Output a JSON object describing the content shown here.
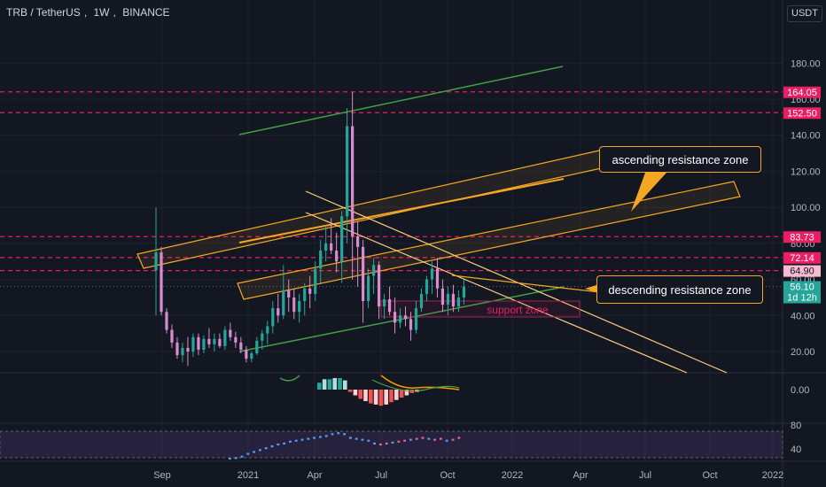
{
  "header": {
    "symbol": "TRB / TetherUS",
    "interval": "1W",
    "exchange": "BINANCE",
    "currency_button": "USDT"
  },
  "colors": {
    "background": "#131722",
    "up_candle": "#26a69a",
    "down_candle": "#d98ccd",
    "green_line": "#43a047",
    "orange": "#f5a623",
    "pink_level": "#e91e63",
    "current_price_bg": "#26a69a"
  },
  "chart_data": {
    "type": "candlestick",
    "timeframe": "1W",
    "x_ticks": [
      "Sep",
      "2021",
      "Apr",
      "Jul",
      "Oct",
      "2022",
      "Apr",
      "Jul",
      "Oct",
      "2022"
    ],
    "y_ticks": [
      "20.00",
      "40.00",
      "60.00",
      "80.00",
      "100.00",
      "120.00",
      "140.00",
      "160.00",
      "180.00"
    ],
    "ylim": [
      4,
      190
    ],
    "price_labels": [
      {
        "label": "164.05",
        "value": 164.05,
        "style": "pink"
      },
      {
        "label": "152.50",
        "value": 152.5,
        "style": "pink"
      },
      {
        "label": "83.73",
        "value": 83.73,
        "style": "pink"
      },
      {
        "label": "72.14",
        "value": 72.14,
        "style": "pink"
      },
      {
        "label": "64.90",
        "value": 64.9,
        "style": "pink-light"
      },
      {
        "label": "56.10",
        "value": 56.1,
        "style": "current"
      },
      {
        "label": "1d 12h",
        "value": null,
        "style": "countdown"
      }
    ],
    "candles": [
      {
        "o": 65,
        "h": 100,
        "l": 40,
        "c": 75
      },
      {
        "o": 75,
        "h": 78,
        "l": 40,
        "c": 42
      },
      {
        "o": 42,
        "h": 44,
        "l": 30,
        "c": 32
      },
      {
        "o": 32,
        "h": 35,
        "l": 22,
        "c": 25
      },
      {
        "o": 25,
        "h": 28,
        "l": 16,
        "c": 18
      },
      {
        "o": 18,
        "h": 25,
        "l": 14,
        "c": 22
      },
      {
        "o": 22,
        "h": 28,
        "l": 12,
        "c": 20
      },
      {
        "o": 20,
        "h": 30,
        "l": 17,
        "c": 28
      },
      {
        "o": 28,
        "h": 30,
        "l": 18,
        "c": 21
      },
      {
        "o": 21,
        "h": 29,
        "l": 19,
        "c": 27
      },
      {
        "o": 27,
        "h": 33,
        "l": 22,
        "c": 24
      },
      {
        "o": 24,
        "h": 30,
        "l": 20,
        "c": 27
      },
      {
        "o": 27,
        "h": 30,
        "l": 22,
        "c": 23
      },
      {
        "o": 23,
        "h": 34,
        "l": 21,
        "c": 32
      },
      {
        "o": 32,
        "h": 36,
        "l": 26,
        "c": 28
      },
      {
        "o": 28,
        "h": 31,
        "l": 22,
        "c": 25
      },
      {
        "o": 25,
        "h": 28,
        "l": 19,
        "c": 21
      },
      {
        "o": 21,
        "h": 23,
        "l": 14,
        "c": 16
      },
      {
        "o": 16,
        "h": 20,
        "l": 14,
        "c": 19
      },
      {
        "o": 19,
        "h": 28,
        "l": 18,
        "c": 26
      },
      {
        "o": 26,
        "h": 32,
        "l": 21,
        "c": 30
      },
      {
        "o": 30,
        "h": 37,
        "l": 24,
        "c": 34
      },
      {
        "o": 34,
        "h": 48,
        "l": 30,
        "c": 44
      },
      {
        "o": 44,
        "h": 52,
        "l": 36,
        "c": 40
      },
      {
        "o": 40,
        "h": 68,
        "l": 38,
        "c": 54
      },
      {
        "o": 54,
        "h": 60,
        "l": 42,
        "c": 50
      },
      {
        "o": 50,
        "h": 55,
        "l": 38,
        "c": 42
      },
      {
        "o": 42,
        "h": 52,
        "l": 36,
        "c": 48
      },
      {
        "o": 48,
        "h": 58,
        "l": 40,
        "c": 55
      },
      {
        "o": 55,
        "h": 62,
        "l": 44,
        "c": 52
      },
      {
        "o": 52,
        "h": 70,
        "l": 48,
        "c": 66
      },
      {
        "o": 66,
        "h": 82,
        "l": 58,
        "c": 76
      },
      {
        "o": 76,
        "h": 90,
        "l": 70,
        "c": 80
      },
      {
        "o": 80,
        "h": 94,
        "l": 74,
        "c": 76
      },
      {
        "o": 76,
        "h": 86,
        "l": 64,
        "c": 70
      },
      {
        "o": 70,
        "h": 98,
        "l": 58,
        "c": 95
      },
      {
        "o": 95,
        "h": 155,
        "l": 80,
        "c": 145
      },
      {
        "o": 145,
        "h": 164,
        "l": 60,
        "c": 84
      },
      {
        "o": 84,
        "h": 92,
        "l": 56,
        "c": 78
      },
      {
        "o": 78,
        "h": 82,
        "l": 36,
        "c": 48
      },
      {
        "o": 48,
        "h": 66,
        "l": 44,
        "c": 62
      },
      {
        "o": 62,
        "h": 72,
        "l": 52,
        "c": 68
      },
      {
        "o": 68,
        "h": 70,
        "l": 38,
        "c": 45
      },
      {
        "o": 45,
        "h": 52,
        "l": 38,
        "c": 49
      },
      {
        "o": 49,
        "h": 56,
        "l": 40,
        "c": 42
      },
      {
        "o": 42,
        "h": 50,
        "l": 30,
        "c": 36
      },
      {
        "o": 36,
        "h": 44,
        "l": 33,
        "c": 40
      },
      {
        "o": 40,
        "h": 45,
        "l": 34,
        "c": 38
      },
      {
        "o": 38,
        "h": 42,
        "l": 26,
        "c": 32
      },
      {
        "o": 32,
        "h": 48,
        "l": 30,
        "c": 44
      },
      {
        "o": 44,
        "h": 55,
        "l": 42,
        "c": 52
      },
      {
        "o": 52,
        "h": 62,
        "l": 48,
        "c": 60
      },
      {
        "o": 60,
        "h": 70,
        "l": 52,
        "c": 66
      },
      {
        "o": 66,
        "h": 72,
        "l": 50,
        "c": 55
      },
      {
        "o": 55,
        "h": 60,
        "l": 42,
        "c": 46
      },
      {
        "o": 46,
        "h": 56,
        "l": 40,
        "c": 52
      },
      {
        "o": 52,
        "h": 57,
        "l": 42,
        "c": 45
      },
      {
        "o": 45,
        "h": 54,
        "l": 42,
        "c": 50
      },
      {
        "o": 50,
        "h": 60,
        "l": 46,
        "c": 56
      }
    ],
    "annotations": [
      {
        "text": "ascending resistance zone",
        "type": "callout"
      },
      {
        "text": "descending resistance zone",
        "type": "callout"
      },
      {
        "text": "support zone",
        "type": "box-label"
      }
    ],
    "macd_pane": {
      "y_ticks": [
        "0.00"
      ],
      "histogram": [
        0.6,
        0.9,
        0.9,
        1.0,
        1.0,
        0.8,
        -0.2,
        -0.5,
        -0.8,
        -1.0,
        -1.2,
        -1.3,
        -1.4,
        -1.3,
        -1.1,
        -0.9,
        -0.7,
        -0.5,
        -0.3,
        -0.2,
        -0.1
      ]
    },
    "rsi_pane": {
      "y_ticks": [
        "80",
        "40"
      ],
      "values": [
        8,
        9,
        12,
        18,
        22,
        26,
        30,
        34,
        38,
        40,
        44,
        46,
        48,
        50,
        52,
        54,
        56,
        60,
        62,
        60,
        52,
        50,
        48,
        46,
        40,
        38,
        40,
        42,
        44,
        46,
        48,
        50,
        52,
        50,
        48,
        50,
        46,
        48,
        52
      ]
    }
  }
}
